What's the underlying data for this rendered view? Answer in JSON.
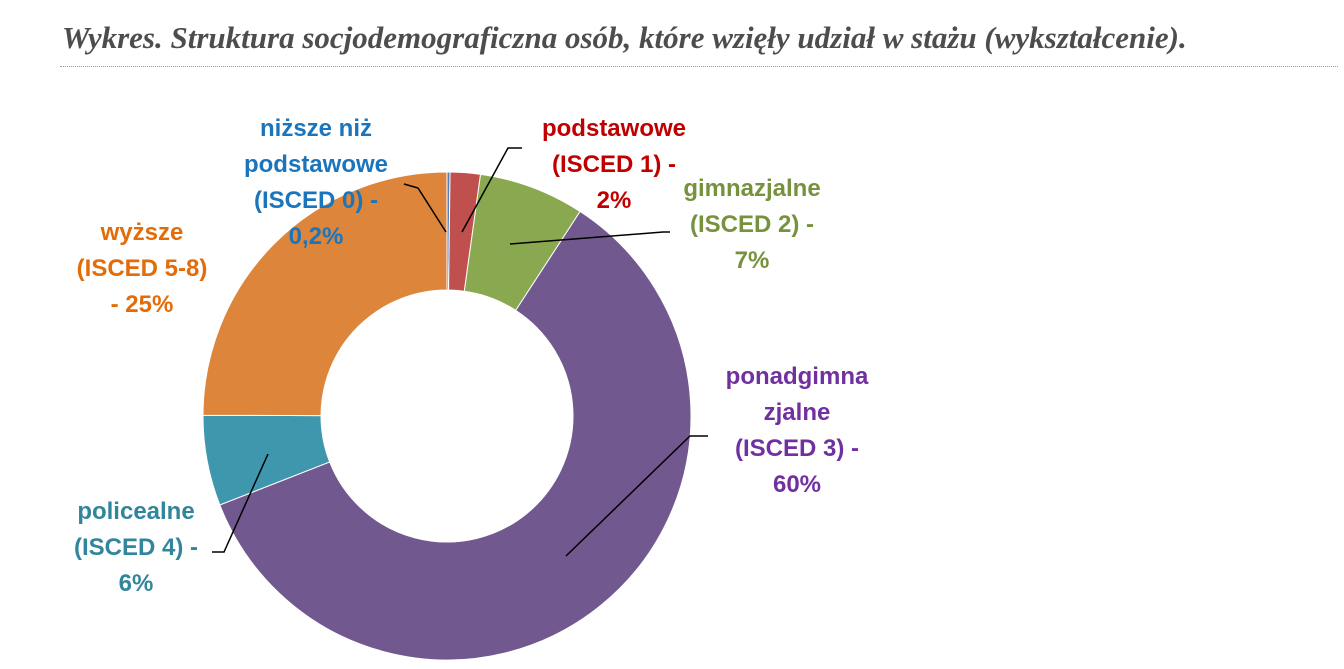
{
  "title": "Wykres. Struktura socjodemograficzna osób, które wzięły udział w stażu (wykształcenie).",
  "chart_data": {
    "type": "pie",
    "variant": "donut",
    "title": "Wykres. Struktura socjodemograficzna osób, które wzięły udział w stażu (wykształcenie).",
    "slices": [
      {
        "key": "nizsze",
        "label_lines": [
          "niższe niż",
          "podstawowe",
          "(ISCED 0)  -",
          "0,2%"
        ],
        "value": 0.2,
        "color": "#4f81bd",
        "label_color": "#1b75bc"
      },
      {
        "key": "podstawowe",
        "label_lines": [
          "podstawowe",
          "(ISCED 1)  -",
          "2%"
        ],
        "value": 2,
        "color": "#c0504d",
        "label_color": "#c00000"
      },
      {
        "key": "gimnazjalne",
        "label_lines": [
          "gimnazjalne",
          "(ISCED 2) -",
          "7%"
        ],
        "value": 7,
        "color": "#8aa84f",
        "label_color": "#76923c"
      },
      {
        "key": "ponadgimnazjalne",
        "label_lines": [
          "ponadgimna",
          "zjalne",
          "(ISCED 3) -",
          "60%"
        ],
        "value": 60,
        "color": "#71588f",
        "label_color": "#7030a0"
      },
      {
        "key": "policealne",
        "label_lines": [
          "policealne",
          "(ISCED 4) -",
          "6%"
        ],
        "value": 6,
        "color": "#3f97ad",
        "label_color": "#31859c"
      },
      {
        "key": "wyzsze",
        "label_lines": [
          "wyższe",
          "(ISCED 5-8)",
          "- 25%"
        ],
        "value": 25,
        "color": "#dd853a",
        "label_color": "#e36c09"
      }
    ]
  }
}
